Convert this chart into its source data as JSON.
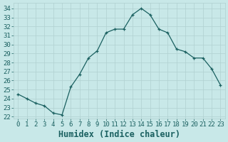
{
  "xlabel": "Humidex (Indice chaleur)",
  "x": [
    0,
    1,
    2,
    3,
    4,
    5,
    6,
    7,
    8,
    9,
    10,
    11,
    12,
    13,
    14,
    15,
    16,
    17,
    18,
    19,
    20,
    21,
    22,
    23
  ],
  "y": [
    24.5,
    24.0,
    23.5,
    23.2,
    22.4,
    22.2,
    25.3,
    26.7,
    28.5,
    29.3,
    31.3,
    31.7,
    31.7,
    33.3,
    34.0,
    33.3,
    31.7,
    31.3,
    29.5,
    29.2,
    28.5,
    28.5,
    27.3,
    25.5
  ],
  "line_color": "#1a6060",
  "marker": "+",
  "bg_color": "#c8e8e8",
  "grid_color": "#b0d0d0",
  "ylim": [
    21.8,
    34.6
  ],
  "xlim": [
    -0.5,
    23.5
  ],
  "yticks": [
    22,
    23,
    24,
    25,
    26,
    27,
    28,
    29,
    30,
    31,
    32,
    33,
    34
  ],
  "xticks": [
    0,
    1,
    2,
    3,
    4,
    5,
    6,
    7,
    8,
    9,
    10,
    11,
    12,
    13,
    14,
    15,
    16,
    17,
    18,
    19,
    20,
    21,
    22,
    23
  ],
  "tick_fontsize": 6.5,
  "xlabel_fontsize": 8.5
}
